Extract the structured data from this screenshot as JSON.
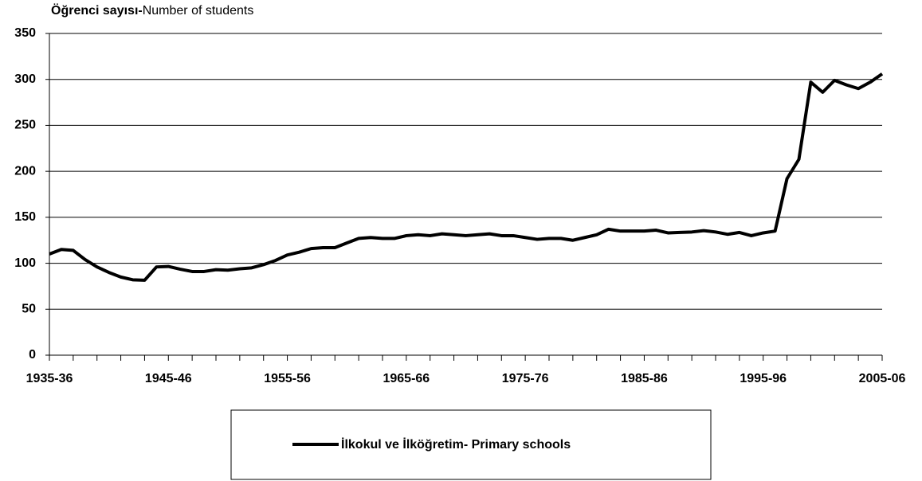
{
  "chart_data": {
    "type": "line",
    "title": {
      "bold": "Öğrenci sayısı-",
      "normal": "Number of students"
    },
    "categories": [
      "1935-36",
      null,
      null,
      null,
      null,
      null,
      null,
      null,
      null,
      null,
      "1945-46",
      null,
      null,
      null,
      null,
      null,
      null,
      null,
      null,
      null,
      "1955-56",
      null,
      null,
      null,
      null,
      null,
      null,
      null,
      null,
      null,
      "1965-66",
      null,
      null,
      null,
      null,
      null,
      null,
      null,
      null,
      null,
      "1975-76",
      null,
      null,
      null,
      null,
      null,
      null,
      null,
      null,
      null,
      "1985-86",
      null,
      null,
      null,
      null,
      null,
      null,
      null,
      null,
      null,
      "1995-96",
      null,
      null,
      null,
      null,
      null,
      null,
      null,
      null,
      null,
      "2005-06"
    ],
    "series": [
      {
        "name": "İlkokul ve İlköğretim- Primary schools",
        "color": "#000000",
        "values": [
          110,
          115,
          114,
          104,
          96,
          90,
          85,
          82,
          81.5,
          96,
          96.5,
          93.5,
          91,
          91,
          93,
          92.5,
          94,
          95,
          98.5,
          103,
          109,
          112,
          116,
          117,
          117,
          122,
          127,
          128,
          127,
          127,
          130,
          131,
          130,
          132,
          131,
          130,
          131,
          132,
          130,
          130,
          128,
          126,
          127,
          127,
          125,
          128,
          131,
          137,
          135,
          135,
          135,
          136,
          133,
          133.5,
          134,
          135.5,
          134,
          131.5,
          133.5,
          130,
          133,
          135,
          192,
          213,
          297,
          286,
          299,
          294,
          290,
          297,
          306
        ]
      }
    ],
    "ylim": [
      0,
      350
    ],
    "yticks": [
      0,
      50,
      100,
      150,
      200,
      250,
      300,
      350
    ],
    "grid": true,
    "legend": "bottom"
  }
}
